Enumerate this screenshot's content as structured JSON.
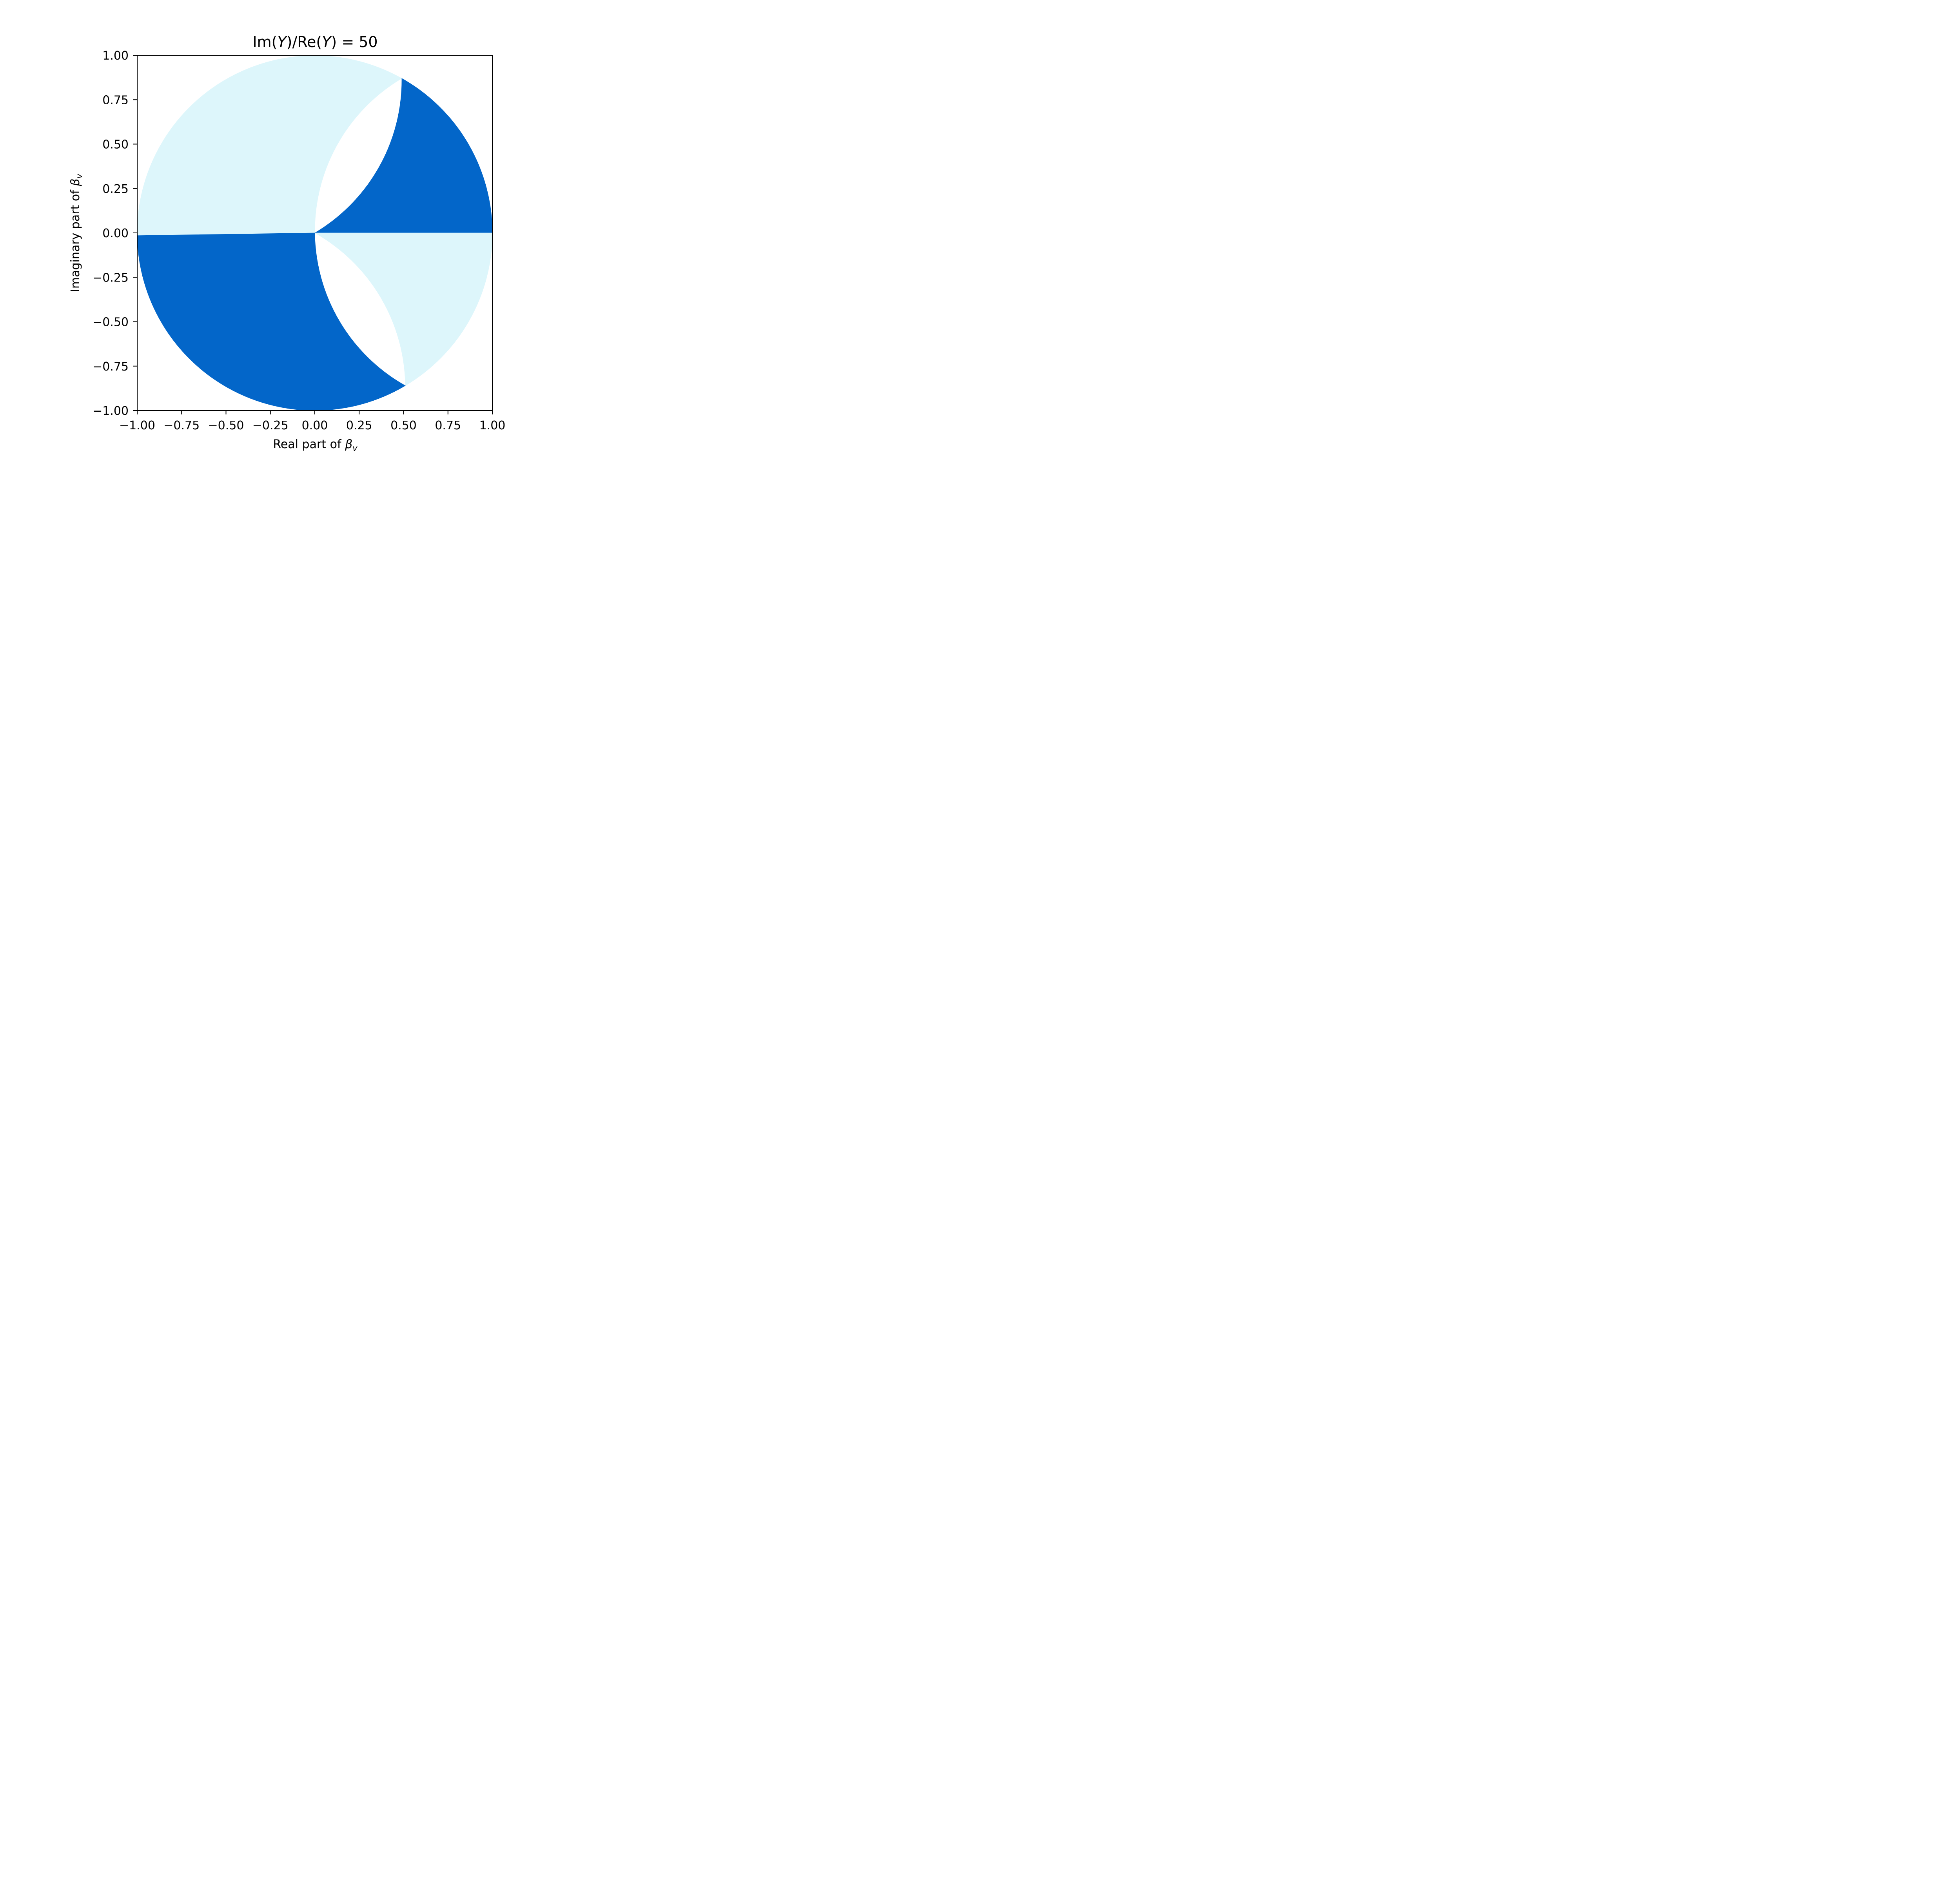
{
  "chart_data": {
    "type": "heatmap",
    "title": {
      "prefix": "Im(",
      "var1": "Y",
      "middle": ")/Re(",
      "var2": "Y",
      "suffix": ") = 50"
    },
    "xlabel": {
      "text": "Real part of ",
      "symbol": "β",
      "subscript": "v"
    },
    "ylabel": {
      "text": "Imaginary part of ",
      "symbol": "β",
      "subscript": "v"
    },
    "xlim": [
      -1.0,
      1.0
    ],
    "ylim": [
      -1.0,
      1.0
    ],
    "x_ticks": [
      -1.0,
      -0.75,
      -0.5,
      -0.25,
      0.0,
      0.25,
      0.5,
      0.75,
      1.0
    ],
    "y_ticks": [
      -1.0,
      -0.75,
      -0.5,
      -0.25,
      0.0,
      0.25,
      0.5,
      0.75,
      1.0
    ],
    "x_tick_labels": [
      "−1.00",
      "−0.75",
      "−0.50",
      "−0.25",
      "0.00",
      "0.25",
      "0.50",
      "0.75",
      "1.00"
    ],
    "y_tick_labels": [
      "−1.00",
      "−0.75",
      "−0.50",
      "−0.25",
      "0.00",
      "0.25",
      "0.50",
      "0.75",
      "1.00"
    ],
    "grid": false,
    "colors": {
      "dark": "#0366c9",
      "light": "#ddf6fb",
      "frame": "#000000"
    },
    "domain": {
      "shape": "unit-disk",
      "radius": 1.0
    },
    "regions": [
      {
        "id": "upper-left-light",
        "color": "light",
        "boundary": [
          {
            "cmd": "M",
            "p": [
              0.0,
              0.0
            ]
          },
          {
            "cmd": "L",
            "p": [
              -1.0,
              -0.015
            ]
          },
          {
            "cmd": "ARC",
            "r": 1.0,
            "to": [
              0.49,
              0.87
            ],
            "sweep": "outer-top"
          },
          {
            "cmd": "ARC",
            "r": 1.0,
            "to": [
              0.0,
              0.0
            ],
            "sweep": "inner-left"
          }
        ]
      },
      {
        "id": "upper-right-dark",
        "color": "dark",
        "boundary": [
          {
            "cmd": "M",
            "p": [
              0.0,
              0.0
            ]
          },
          {
            "cmd": "ARC",
            "r": 1.0,
            "to": [
              0.49,
              0.87
            ],
            "sweep": "inner-left"
          },
          {
            "cmd": "ARC",
            "r": 1.0,
            "to": [
              1.0,
              0.0
            ],
            "sweep": "outer-right"
          },
          {
            "cmd": "L",
            "p": [
              0.0,
              0.0
            ]
          }
        ]
      },
      {
        "id": "lower-right-light",
        "color": "light",
        "boundary": [
          {
            "cmd": "M",
            "p": [
              0.0,
              0.0
            ]
          },
          {
            "cmd": "L",
            "p": [
              1.0,
              0.0
            ]
          },
          {
            "cmd": "ARC",
            "r": 1.0,
            "to": [
              0.51,
              -0.86
            ],
            "sweep": "outer-right"
          },
          {
            "cmd": "ARC",
            "r": 1.0,
            "to": [
              0.0,
              0.0
            ],
            "sweep": "inner-left"
          }
        ]
      },
      {
        "id": "lower-left-dark",
        "color": "dark",
        "boundary": [
          {
            "cmd": "M",
            "p": [
              0.0,
              0.0
            ]
          },
          {
            "cmd": "ARC",
            "r": 1.0,
            "to": [
              0.51,
              -0.86
            ],
            "sweep": "inner-left"
          },
          {
            "cmd": "ARC",
            "r": 1.0,
            "to": [
              -1.0,
              -0.015
            ],
            "sweep": "outer-bottom"
          },
          {
            "cmd": "L",
            "p": [
              0.0,
              0.0
            ]
          }
        ]
      }
    ]
  }
}
